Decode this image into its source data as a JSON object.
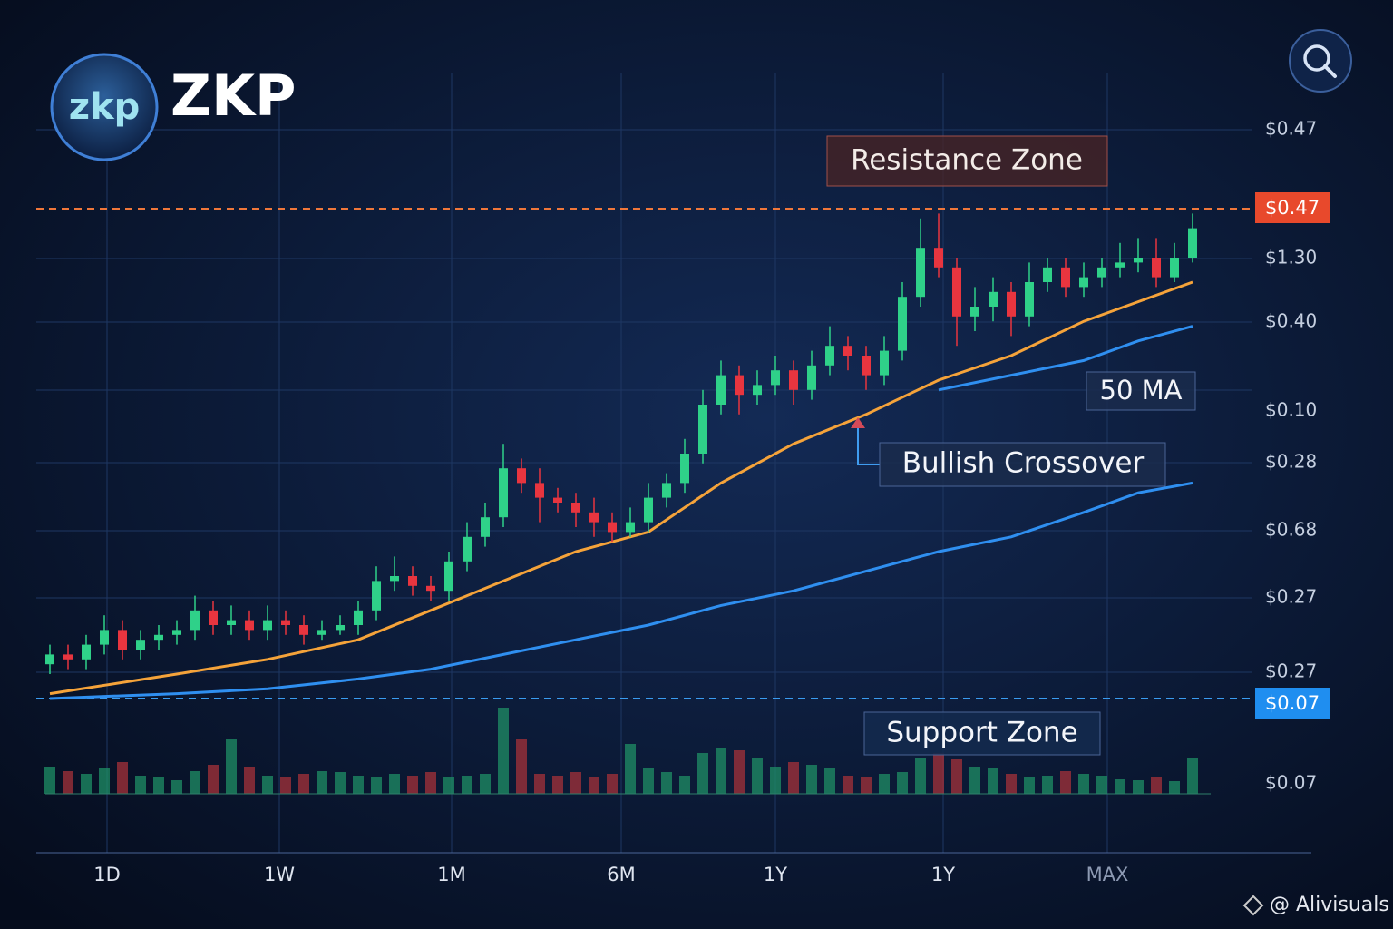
{
  "header": {
    "logo": "zkp",
    "title": "ZKP"
  },
  "chart_data": {
    "type": "candlestick",
    "ylim": [
      0,
      100
    ],
    "candles": [
      [
        7,
        11,
        5,
        9
      ],
      [
        9,
        11,
        6,
        8
      ],
      [
        8,
        13,
        6,
        11
      ],
      [
        11,
        17,
        9,
        14
      ],
      [
        14,
        16,
        8,
        10
      ],
      [
        10,
        14,
        8,
        12
      ],
      [
        12,
        15,
        10,
        13
      ],
      [
        13,
        16,
        11,
        14
      ],
      [
        14,
        21,
        12,
        18
      ],
      [
        18,
        20,
        13,
        15
      ],
      [
        15,
        19,
        13,
        16
      ],
      [
        16,
        18,
        12,
        14
      ],
      [
        14,
        19,
        12,
        16
      ],
      [
        16,
        18,
        13,
        15
      ],
      [
        15,
        17,
        11,
        13
      ],
      [
        13,
        16,
        12,
        14
      ],
      [
        14,
        17,
        13,
        15
      ],
      [
        15,
        20,
        13,
        18
      ],
      [
        18,
        27,
        16,
        24
      ],
      [
        24,
        29,
        22,
        25
      ],
      [
        25,
        27,
        21,
        23
      ],
      [
        23,
        25,
        20,
        22
      ],
      [
        22,
        30,
        20,
        28
      ],
      [
        28,
        36,
        26,
        33
      ],
      [
        33,
        40,
        31,
        37
      ],
      [
        37,
        52,
        35,
        47
      ],
      [
        47,
        49,
        42,
        44
      ],
      [
        44,
        47,
        36,
        41
      ],
      [
        41,
        43,
        38,
        40
      ],
      [
        40,
        42,
        35,
        38
      ],
      [
        38,
        41,
        33,
        36
      ],
      [
        36,
        38,
        32,
        34
      ],
      [
        34,
        39,
        33,
        36
      ],
      [
        36,
        44,
        34,
        41
      ],
      [
        41,
        46,
        39,
        44
      ],
      [
        44,
        53,
        42,
        50
      ],
      [
        50,
        63,
        48,
        60
      ],
      [
        60,
        69,
        58,
        66
      ],
      [
        66,
        68,
        58,
        62
      ],
      [
        62,
        67,
        60,
        64
      ],
      [
        64,
        70,
        62,
        67
      ],
      [
        67,
        69,
        60,
        63
      ],
      [
        63,
        71,
        61,
        68
      ],
      [
        68,
        76,
        66,
        72
      ],
      [
        72,
        74,
        67,
        70
      ],
      [
        70,
        72,
        63,
        66
      ],
      [
        66,
        74,
        64,
        71
      ],
      [
        71,
        85,
        69,
        82
      ],
      [
        82,
        98,
        80,
        92
      ],
      [
        92,
        99,
        86,
        88
      ],
      [
        88,
        90,
        72,
        78
      ],
      [
        78,
        84,
        75,
        80
      ],
      [
        80,
        86,
        77,
        83
      ],
      [
        83,
        85,
        74,
        78
      ],
      [
        78,
        89,
        76,
        85
      ],
      [
        85,
        90,
        83,
        88
      ],
      [
        88,
        90,
        82,
        84
      ],
      [
        84,
        89,
        82,
        86
      ],
      [
        86,
        90,
        84,
        88
      ],
      [
        88,
        93,
        86,
        89
      ],
      [
        89,
        94,
        87,
        90
      ],
      [
        90,
        94,
        84,
        86
      ],
      [
        86,
        93,
        85,
        90
      ],
      [
        90,
        99,
        89,
        96
      ]
    ],
    "volumes": [
      30,
      25,
      22,
      28,
      35,
      20,
      18,
      15,
      25,
      32,
      60,
      30,
      20,
      18,
      22,
      25,
      24,
      20,
      18,
      22,
      20,
      24,
      18,
      20,
      22,
      95,
      60,
      22,
      20,
      24,
      18,
      22,
      55,
      28,
      24,
      20,
      45,
      50,
      48,
      40,
      30,
      35,
      32,
      28,
      20,
      18,
      22,
      24,
      40,
      45,
      38,
      30,
      28,
      22,
      18,
      20,
      25,
      22,
      20,
      16,
      15,
      18,
      14,
      40
    ],
    "series": [
      {
        "color": "#f5a33a",
        "x": [
          0,
          7,
          12,
          17,
          21,
          25,
          29,
          33,
          37,
          41,
          45,
          49,
          53,
          57,
          60,
          63
        ],
        "values": [
          1,
          5,
          8,
          12,
          18,
          24,
          30,
          34,
          44,
          52,
          58,
          65,
          70,
          77,
          81,
          85
        ]
      },
      {
        "color": "#2f8ff0",
        "x": [
          0,
          7,
          12,
          17,
          21,
          25,
          29,
          33,
          37,
          41,
          45,
          49,
          53,
          57,
          60,
          63
        ],
        "values": [
          0,
          1,
          2,
          4,
          6,
          9,
          12,
          15,
          19,
          22,
          26,
          30,
          33,
          38,
          42,
          44
        ]
      },
      {
        "color": "#2f8ff0",
        "x": [
          49,
          53,
          57,
          60,
          63
        ],
        "values": [
          63,
          66,
          69,
          73,
          76
        ]
      }
    ],
    "price_labels": [
      "$0.47",
      "$1.30",
      "$0.40",
      "$0.10",
      "$0.28",
      "$0.68",
      "$0.27",
      "$0.27",
      "$0.07"
    ],
    "resistance_tag": "$0.47",
    "support_tag": "$0.07",
    "annotations": {
      "resistance": "Resistance Zone",
      "crossover": "Bullish Crossover",
      "ma": "50 MA",
      "support": "Support Zone"
    },
    "timeframes": [
      "1D",
      "1W",
      "1M",
      "6M",
      "1Y",
      "1Y",
      "MAX"
    ]
  },
  "watermark": "@ Alivisuals"
}
